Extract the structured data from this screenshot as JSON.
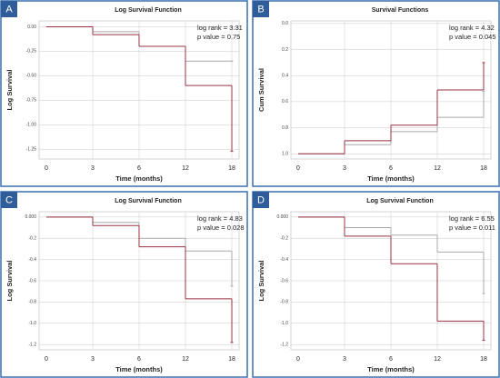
{
  "chart_data": [
    {
      "type": "step",
      "label": "A",
      "title": "Log Survival Function",
      "ylabel": "Log Survival",
      "xlabel": "Time (months)",
      "categories": [
        "0",
        "3",
        "6",
        "12",
        "18"
      ],
      "series": [
        {
          "color": "#aaaaaa",
          "values": [
            0,
            -0.05,
            -0.2,
            -0.35,
            -0.35
          ]
        },
        {
          "color": "#9a3040",
          "values": [
            0,
            -0.08,
            -0.2,
            -0.6,
            -1.27
          ]
        }
      ],
      "ylim": [
        0.06,
        -1.35
      ],
      "yticks": [
        {
          "value": 0,
          "label": "0.00"
        },
        {
          "value": -0.25,
          "label": "-0.25"
        },
        {
          "value": -0.5,
          "label": "-0.50"
        },
        {
          "value": -0.75,
          "label": "-0.75"
        },
        {
          "value": -1,
          "label": "-1.00"
        },
        {
          "value": -1.25,
          "label": "-1.25"
        }
      ],
      "annotations": [
        "log rank = 3.31",
        "p value = 0.75"
      ],
      "grid": true
    },
    {
      "type": "step",
      "label": "B",
      "title": "Survival Functions",
      "ylabel": "Cum Survival",
      "xlabel": "Time (months)",
      "categories": [
        "0",
        "3",
        "6",
        "12",
        "18"
      ],
      "series": [
        {
          "color": "#aaaaaa",
          "values": [
            1,
            0.93,
            0.83,
            0.72,
            0.52
          ]
        },
        {
          "color": "#9a3040",
          "values": [
            1,
            0.9,
            0.78,
            0.51,
            0.3
          ]
        }
      ],
      "ylim": [
        -0.02,
        1.04
      ],
      "yticks": [
        {
          "value": 0,
          "label": "0.0"
        },
        0.2,
        0.4,
        0.6,
        0.8,
        {
          "value": 1,
          "label": "1.0"
        }
      ],
      "annotations": [
        "log rank = 4.32",
        "p value = 0.045"
      ],
      "grid": true
    },
    {
      "type": "step",
      "label": "C",
      "title": "Log Survival Function",
      "ylabel": "Log Survival",
      "xlabel": "Time (months)",
      "categories": [
        "0",
        "3",
        "6",
        "12",
        "18"
      ],
      "series": [
        {
          "color": "#aaaaaa",
          "values": [
            0,
            -0.05,
            -0.2,
            -0.32,
            -0.65
          ]
        },
        {
          "color": "#9a3040",
          "values": [
            0,
            -0.08,
            -0.28,
            -0.77,
            -1.18
          ]
        }
      ],
      "ylim": [
        0.05,
        -1.25
      ],
      "yticks": [
        {
          "value": 0,
          "label": "0.000"
        },
        -0.2,
        -0.4,
        -0.6,
        -0.8,
        {
          "value": -1,
          "label": "-1.0"
        },
        -1.2
      ],
      "annotations": [
        "log rank = 4.83",
        "p value = 0.028"
      ],
      "grid": true
    },
    {
      "type": "step",
      "label": "D",
      "title": "Log Survival Function",
      "ylabel": "Log Survival",
      "xlabel": "Time (months)",
      "categories": [
        "0",
        "3",
        "6",
        "12",
        "18"
      ],
      "series": [
        {
          "color": "#aaaaaa",
          "values": [
            0,
            -0.1,
            -0.17,
            -0.33,
            -0.72
          ]
        },
        {
          "color": "#9a3040",
          "values": [
            0,
            -0.18,
            -0.44,
            -0.98,
            -1.16
          ]
        }
      ],
      "ylim": [
        0.05,
        -1.25
      ],
      "yticks": [
        {
          "value": 0,
          "label": "0.000"
        },
        -0.2,
        -0.4,
        -0.6,
        -0.8,
        {
          "value": -1,
          "label": "-1.0"
        },
        -1.2
      ],
      "annotations": [
        "log rank = 6.55",
        "p value = 0.011"
      ],
      "grid": true
    }
  ]
}
